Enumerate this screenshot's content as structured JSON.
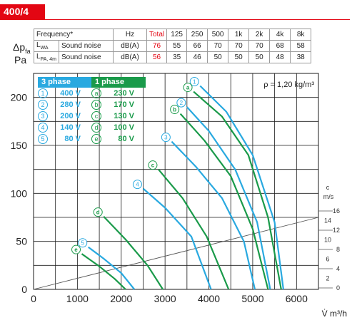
{
  "title": "400/4",
  "noise_table": {
    "header": [
      "Frequency*",
      "Hz",
      "Total",
      "125",
      "250",
      "500",
      "1k",
      "2k",
      "4k",
      "8k"
    ],
    "rows": [
      {
        "label": "L",
        "sub": "WA",
        "kind": "Sound noise",
        "unit": "dB(A)",
        "total": "76",
        "values": [
          "55",
          "66",
          "70",
          "70",
          "70",
          "68",
          "58"
        ]
      },
      {
        "label": "L",
        "sub": "PA, 4m",
        "kind": "Sound noise",
        "unit": "dB(A)",
        "total": "56",
        "values": [
          "35",
          "46",
          "50",
          "50",
          "50",
          "48",
          "38"
        ]
      }
    ]
  },
  "colors": {
    "three_phase": "#29a9e0",
    "one_phase": "#1a9a4a",
    "brand": "#e30613",
    "grid": "#1a1a1a"
  },
  "chart_data": {
    "type": "line",
    "ylabel_main": "Δp",
    "ylabel_sub": "fa",
    "ylabel_unit": "Pa",
    "xlabel": "V̇ m³/h",
    "density_note": "ρ = 1,20 kg/m³",
    "xlim": [
      0,
      6500
    ],
    "ylim": [
      0,
      225
    ],
    "xticks": [
      "0",
      "1000",
      "2000",
      "3000",
      "4000",
      "5000",
      "6000"
    ],
    "yticks": [
      "0",
      "50",
      "100",
      "150",
      "200"
    ],
    "velocity_axis": {
      "unit_top": "c",
      "unit_bottom": "m/s",
      "ticks": [
        "0",
        "4",
        "8",
        "12",
        "16"
      ],
      "labels_even": [
        "2",
        "6",
        "10",
        "14"
      ]
    },
    "velocity_line": {
      "x": [
        0,
        6500
      ],
      "y": [
        0,
        75
      ]
    },
    "legend": {
      "three_phase_title": "3 phase",
      "one_phase_title": "1 phase",
      "three_phase": [
        {
          "id": "1",
          "voltage": "400 V"
        },
        {
          "id": "2",
          "voltage": "280 V"
        },
        {
          "id": "3",
          "voltage": "200 V"
        },
        {
          "id": "4",
          "voltage": "140 V"
        },
        {
          "id": "5",
          "voltage": "80 V"
        }
      ],
      "one_phase": [
        {
          "id": "a",
          "voltage": "230 V"
        },
        {
          "id": "b",
          "voltage": "170 V"
        },
        {
          "id": "c",
          "voltage": "130 V"
        },
        {
          "id": "d",
          "voltage": "100 V"
        },
        {
          "id": "e",
          "voltage": "80 V"
        }
      ]
    },
    "series": [
      {
        "name": "1",
        "phase": "3",
        "x": [
          3800,
          4400,
          5000,
          5500,
          5700
        ],
        "y": [
          212,
          185,
          140,
          70,
          0
        ]
      },
      {
        "name": "2",
        "phase": "3",
        "x": [
          3500,
          4000,
          4600,
          5100,
          5400
        ],
        "y": [
          190,
          165,
          125,
          70,
          0
        ]
      },
      {
        "name": "3",
        "phase": "3",
        "x": [
          3150,
          3700,
          4300,
          4800,
          5050
        ],
        "y": [
          154,
          128,
          95,
          50,
          0
        ]
      },
      {
        "name": "4",
        "phase": "3",
        "x": [
          2500,
          3000,
          3600,
          4050
        ],
        "y": [
          105,
          85,
          55,
          0
        ]
      },
      {
        "name": "5",
        "phase": "3",
        "x": [
          1250,
          1600,
          2000,
          2300
        ],
        "y": [
          44,
          32,
          17,
          0
        ]
      },
      {
        "name": "a",
        "phase": "1",
        "x": [
          3650,
          4300,
          4900,
          5350,
          5650
        ],
        "y": [
          206,
          180,
          140,
          75,
          0
        ]
      },
      {
        "name": "b",
        "phase": "1",
        "x": [
          3350,
          3900,
          4500,
          5000,
          5350
        ],
        "y": [
          183,
          155,
          118,
          63,
          0
        ]
      },
      {
        "name": "c",
        "phase": "1",
        "x": [
          2850,
          3400,
          3950,
          4450
        ],
        "y": [
          125,
          95,
          55,
          0
        ]
      },
      {
        "name": "d",
        "phase": "1",
        "x": [
          1600,
          2100,
          2600,
          2950
        ],
        "y": [
          76,
          52,
          25,
          0
        ]
      },
      {
        "name": "e",
        "phase": "1",
        "x": [
          1100,
          1500,
          1850,
          2100
        ],
        "y": [
          37,
          24,
          11,
          0
        ]
      }
    ]
  }
}
